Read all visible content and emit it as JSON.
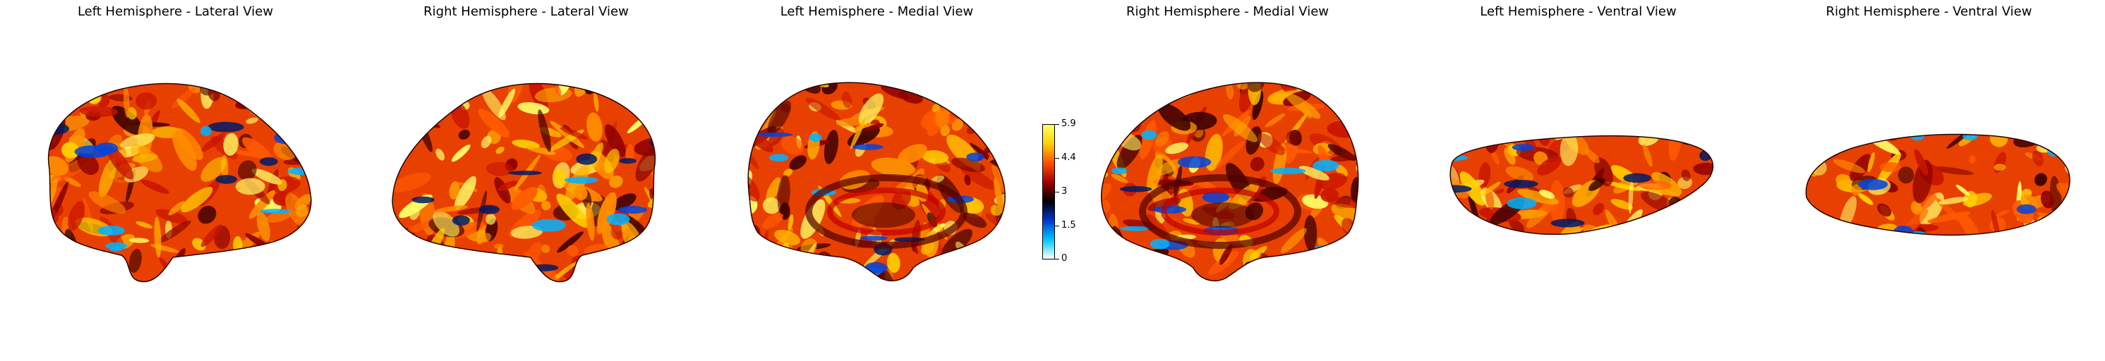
{
  "panels": [
    {
      "title": "Left Hemisphere - Lateral View"
    },
    {
      "title": "Right Hemisphere - Lateral View"
    },
    {
      "title": "Left Hemisphere - Medial View"
    },
    {
      "title": "Right Hemisphere - Medial View"
    },
    {
      "title": "Left Hemisphere - Ventral View"
    },
    {
      "title": "Right Hemisphere - Ventral View"
    }
  ],
  "colorbar": {
    "tick_labels": [
      "5.9",
      "4.4",
      "3",
      "1.5",
      "0"
    ],
    "colormap": [
      "#ffffff",
      "#00c8ff",
      "#0033cc",
      "#000000",
      "#a00000",
      "#ff4a00",
      "#ffd200",
      "#ffff66"
    ]
  }
}
